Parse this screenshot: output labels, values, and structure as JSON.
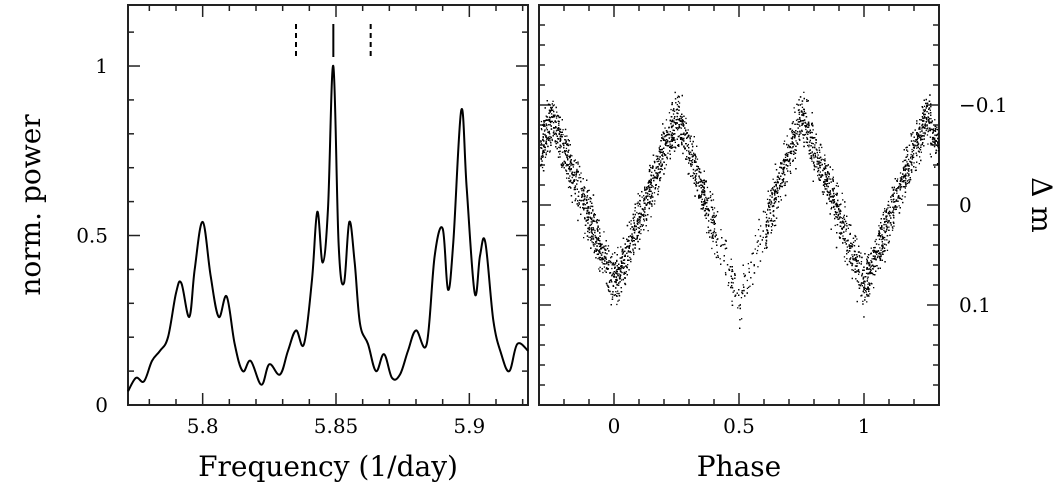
{
  "chart_data": [
    {
      "type": "line",
      "xlabel": "Frequency (1/day)",
      "ylabel": "norm. power",
      "xlim": [
        5.772,
        5.922
      ],
      "ylim": [
        0,
        1.18
      ],
      "x_ticks": [
        5.8,
        5.85,
        5.9
      ],
      "x_tick_labels": [
        "5.8",
        "5.85",
        "5.9"
      ],
      "y_ticks": [
        0,
        0.5,
        1
      ],
      "y_tick_labels": [
        "0",
        "0.5",
        "1"
      ],
      "series": [
        {
          "x": [
            5.772,
            5.775,
            5.778,
            5.781,
            5.784,
            5.787,
            5.79,
            5.792,
            5.795,
            5.797,
            5.8,
            5.803,
            5.806,
            5.809,
            5.812,
            5.815,
            5.818,
            5.822,
            5.825,
            5.829,
            5.832,
            5.835,
            5.838,
            5.841,
            5.843,
            5.845,
            5.847,
            5.849,
            5.851,
            5.853,
            5.855,
            5.857,
            5.859,
            5.862,
            5.865,
            5.868,
            5.871,
            5.874,
            5.877,
            5.88,
            5.884,
            5.887,
            5.89,
            5.892,
            5.894,
            5.897,
            5.899,
            5.902,
            5.904,
            5.906,
            5.909,
            5.912,
            5.915,
            5.918,
            5.922
          ],
          "y": [
            0.04,
            0.08,
            0.07,
            0.13,
            0.16,
            0.2,
            0.33,
            0.36,
            0.26,
            0.4,
            0.54,
            0.38,
            0.26,
            0.32,
            0.18,
            0.1,
            0.13,
            0.06,
            0.12,
            0.09,
            0.16,
            0.22,
            0.18,
            0.37,
            0.57,
            0.42,
            0.58,
            1.0,
            0.47,
            0.36,
            0.54,
            0.42,
            0.24,
            0.18,
            0.1,
            0.15,
            0.08,
            0.09,
            0.16,
            0.22,
            0.18,
            0.44,
            0.52,
            0.34,
            0.48,
            0.87,
            0.64,
            0.33,
            0.44,
            0.48,
            0.25,
            0.15,
            0.1,
            0.18,
            0.16
          ]
        }
      ],
      "markers": [
        {
          "x": 5.835,
          "style": "dashed"
        },
        {
          "x": 5.849,
          "style": "solid"
        },
        {
          "x": 5.863,
          "style": "dashed"
        }
      ]
    },
    {
      "type": "scatter",
      "xlabel": "Phase",
      "ylabel": "Δ m",
      "xlim": [
        -0.3,
        1.3
      ],
      "ylim": [
        0.2,
        -0.2
      ],
      "x_ticks": [
        0,
        0.5,
        1
      ],
      "x_tick_labels": [
        "0",
        "0.5",
        "1"
      ],
      "y_ticks": [
        -0.1,
        0,
        0.1
      ],
      "y_tick_labels": [
        "−0.1",
        "0",
        "0.1"
      ],
      "envelope": {
        "phase": [
          0.0,
          0.25,
          0.5,
          0.75,
          1.0
        ],
        "dm": [
          0.08,
          -0.09,
          0.1,
          -0.09,
          0.08
        ]
      },
      "scatter_sd": 0.025
    }
  ]
}
